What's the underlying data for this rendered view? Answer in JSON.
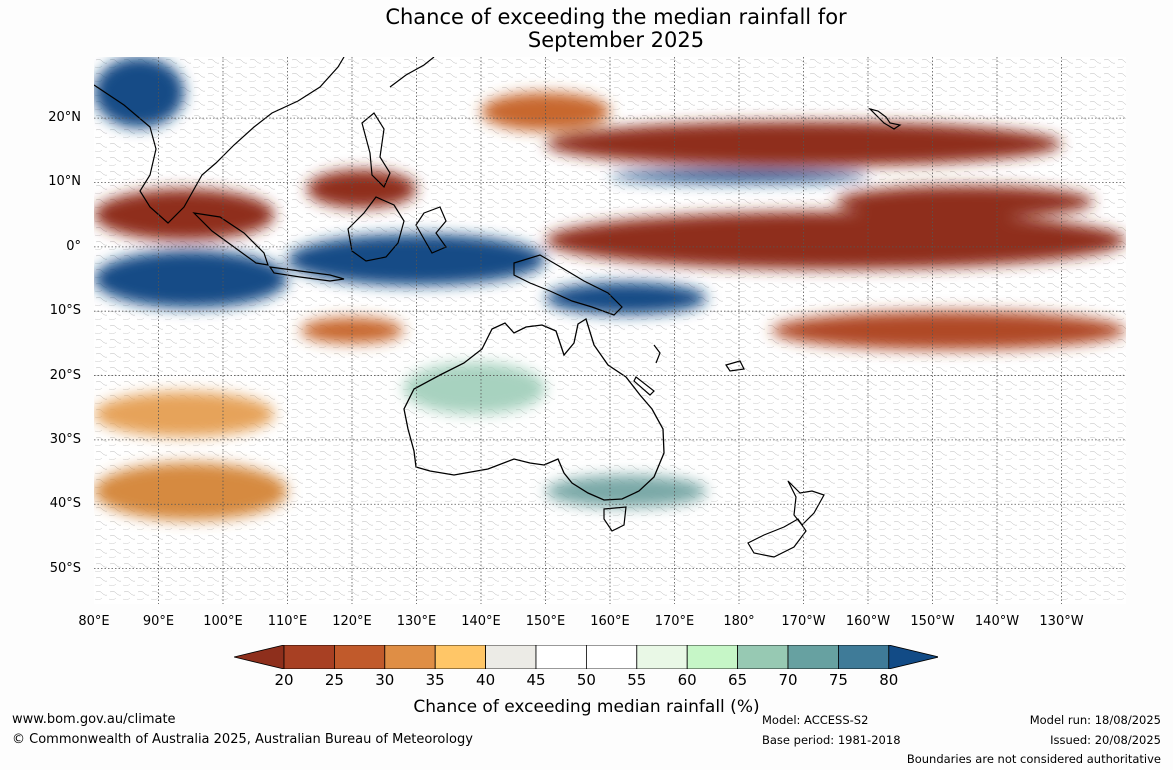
{
  "title": {
    "line1": "Chance of exceeding the median rainfall for",
    "line2": "September 2025"
  },
  "map": {
    "lat_labels": [
      "20°N",
      "10°N",
      "0°",
      "10°S",
      "20°S",
      "30°S",
      "40°S",
      "50°S"
    ],
    "lat_values": [
      20,
      10,
      0,
      -10,
      -20,
      -30,
      -40,
      -50
    ],
    "lon_labels": [
      "80°E",
      "90°E",
      "100°E",
      "110°E",
      "120°E",
      "130°E",
      "140°E",
      "150°E",
      "160°E",
      "170°E",
      "180°",
      "170°W",
      "160°W",
      "150°W",
      "140°W",
      "130°W"
    ],
    "lon_values": [
      80,
      90,
      100,
      110,
      120,
      130,
      140,
      150,
      160,
      170,
      180,
      190,
      200,
      210,
      220,
      230
    ],
    "lon_range": [
      80,
      240
    ],
    "lat_range": [
      -55.5,
      29.5
    ],
    "bands": [
      {
        "lat": 16,
        "lon1": 150,
        "lon2": 230,
        "width": 7,
        "color": "#8f2f1e"
      },
      {
        "lat": 9,
        "lon1": 113,
        "lon2": 130,
        "width": 6,
        "color": "#8f2f1e"
      },
      {
        "lat": 5,
        "lon1": 80,
        "lon2": 108,
        "width": 8,
        "color": "#8f2f1e"
      },
      {
        "lat": 1,
        "lon1": 150,
        "lon2": 240,
        "width": 9,
        "color": "#8f2f1e"
      },
      {
        "lat": 7,
        "lon1": 195,
        "lon2": 235,
        "width": 5,
        "color": "#8f2f1e"
      },
      {
        "lat": -13,
        "lon1": 185,
        "lon2": 240,
        "width": 6,
        "color": "#b04a26"
      },
      {
        "lat": -13,
        "lon1": 112,
        "lon2": 128,
        "width": 4,
        "color": "#c8672f"
      },
      {
        "lat": 21,
        "lon1": 140,
        "lon2": 160,
        "width": 6,
        "color": "#c8672f"
      },
      {
        "lat": -2,
        "lon1": 110,
        "lon2": 150,
        "width": 8,
        "color": "#124b86"
      },
      {
        "lat": -5,
        "lon1": 80,
        "lon2": 110,
        "width": 9,
        "color": "#124b86"
      },
      {
        "lat": -8,
        "lon1": 150,
        "lon2": 175,
        "width": 5,
        "color": "#124b86"
      },
      {
        "lat": 24,
        "lon1": 80,
        "lon2": 94,
        "width": 11,
        "color": "#124b86"
      },
      {
        "lat": 11,
        "lon1": 160,
        "lon2": 200,
        "width": 2,
        "color": "#124b86"
      },
      {
        "lat": -38,
        "lon1": 150,
        "lon2": 175,
        "width": 5,
        "color": "#7aa9a7"
      },
      {
        "lat": -22,
        "lon1": 128,
        "lon2": 150,
        "width": 8,
        "color": "#a7d2bf"
      },
      {
        "lat": -38,
        "lon1": 80,
        "lon2": 110,
        "width": 9,
        "color": "#d68a3f"
      },
      {
        "lat": -26,
        "lon1": 80,
        "lon2": 108,
        "width": 7,
        "color": "#e6a35a"
      }
    ]
  },
  "colorbar": {
    "ticks": [
      "20",
      "25",
      "30",
      "35",
      "40",
      "45",
      "50",
      "55",
      "60",
      "65",
      "70",
      "75",
      "80"
    ],
    "colors": [
      "#a84023",
      "#c15a2b",
      "#df8e45",
      "#ffc667",
      "#ecebe6",
      "#ffffff",
      "#ffffff",
      "#e9f8e6",
      "#c6f6c7",
      "#97c9b3",
      "#67a1a1",
      "#3f7b98"
    ],
    "under_color": "#8e2f1c",
    "over_color": "#124b86",
    "label": "Chance of exceeding median rainfall (%)"
  },
  "footer": {
    "website": "www.bom.gov.au/climate",
    "copyright": "© Commonwealth of Australia 2025, Australian Bureau of Meteorology",
    "model": "Model: ACCESS-S2",
    "base_period": "Base period: 1981-2018",
    "model_run": "Model run: 18/08/2025",
    "issued": "Issued: 20/08/2025",
    "disclaimer": "Boundaries are not considered authoritative"
  }
}
